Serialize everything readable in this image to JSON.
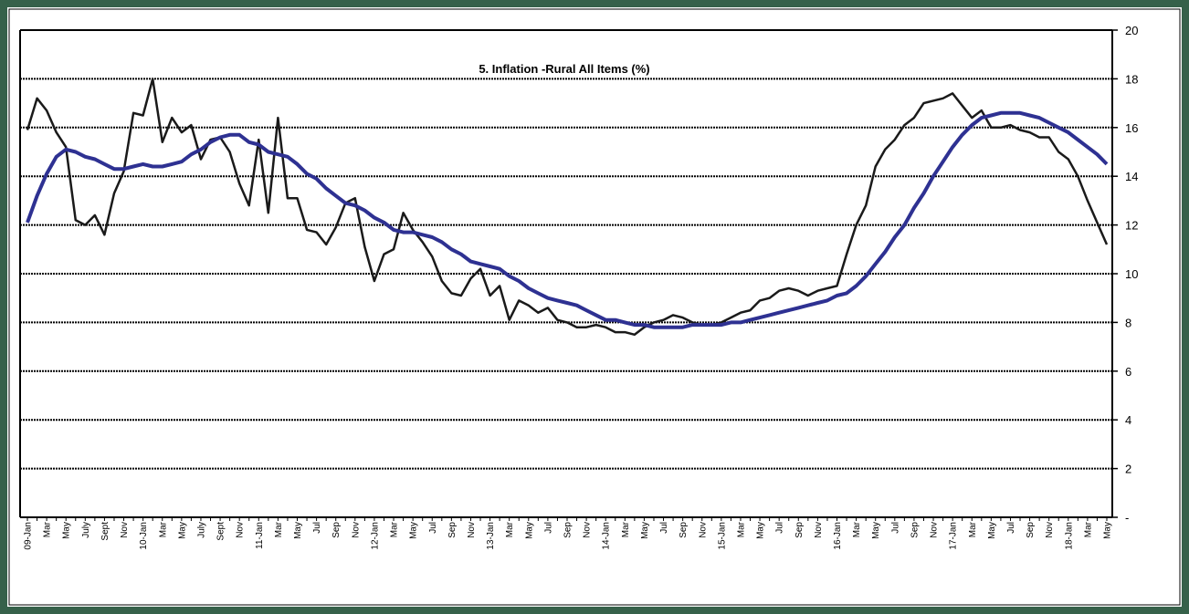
{
  "chart_data": {
    "type": "line",
    "title": "5. Inflation -Rural All Items (%)",
    "categories": [
      "09-Jan",
      null,
      "Mar",
      null,
      "May",
      null,
      "July",
      null,
      "Sept",
      null,
      "Nov",
      null,
      "10-Jan",
      null,
      "Mar",
      null,
      "May",
      null,
      "July",
      null,
      "Sept",
      null,
      "Nov",
      null,
      "11-Jan",
      null,
      "Mar",
      null,
      "May",
      null,
      "Jul",
      null,
      "Sep",
      null,
      "Nov",
      null,
      "12-Jan",
      null,
      "Mar",
      null,
      "May",
      null,
      "Jul",
      null,
      "Sep",
      null,
      "Nov",
      null,
      "13-Jan",
      null,
      "Mar",
      null,
      "May",
      null,
      "Jul",
      null,
      "Sep",
      null,
      "Nov",
      null,
      "14-Jan",
      null,
      "Mar",
      null,
      "May",
      null,
      "Jul",
      null,
      "Sep",
      null,
      "Nov",
      null,
      "15-Jan",
      null,
      "Mar",
      null,
      "May",
      null,
      "Jul",
      null,
      "Sep",
      null,
      "Nov",
      null,
      "16-Jan",
      null,
      "Mar",
      null,
      "May",
      null,
      "Jul",
      null,
      "Sep",
      null,
      "Nov",
      null,
      "17-Jan",
      null,
      "Mar",
      null,
      "May",
      null,
      "Jul",
      null,
      "Sep",
      null,
      "Nov",
      null,
      "18-Jan",
      null,
      "Mar",
      null,
      "May"
    ],
    "series": [
      {
        "color": "#1a1a1a",
        "values": [
          15.9,
          17.2,
          16.7,
          15.8,
          15.2,
          12.2,
          12.0,
          12.4,
          11.6,
          13.3,
          14.2,
          16.6,
          16.5,
          18.0,
          15.4,
          16.4,
          15.8,
          16.1,
          14.7,
          15.5,
          15.6,
          15.0,
          13.7,
          12.8,
          15.5,
          12.5,
          16.4,
          13.1,
          13.1,
          11.8,
          11.7,
          11.2,
          11.9,
          12.9,
          13.1,
          11.1,
          9.7,
          10.8,
          11.0,
          12.5,
          11.8,
          11.3,
          10.7,
          9.7,
          9.2,
          9.1,
          9.8,
          10.2,
          9.1,
          9.5,
          8.1,
          8.9,
          8.7,
          8.4,
          8.6,
          8.1,
          8.0,
          7.8,
          7.8,
          7.9,
          7.8,
          7.6,
          7.6,
          7.5,
          7.8,
          8.0,
          8.1,
          8.3,
          8.2,
          8.0,
          7.9,
          7.9,
          8.0,
          8.2,
          8.4,
          8.5,
          8.9,
          9.0,
          9.3,
          9.4,
          9.3,
          9.1,
          9.3,
          9.4,
          9.5,
          10.8,
          12.0,
          12.8,
          14.4,
          15.1,
          15.5,
          16.1,
          16.4,
          17.0,
          17.1,
          17.2,
          17.4,
          16.9,
          16.4,
          16.7,
          16.0,
          16.0,
          16.1,
          15.9,
          15.8,
          15.6,
          15.6,
          15.0,
          14.7,
          14.0,
          13.0,
          12.1,
          11.2
        ]
      },
      {
        "color": "#2e3192",
        "values": [
          12.1,
          13.2,
          14.1,
          14.8,
          15.1,
          15.0,
          14.8,
          14.7,
          14.5,
          14.3,
          14.3,
          14.4,
          14.5,
          14.4,
          14.4,
          14.5,
          14.6,
          14.9,
          15.1,
          15.4,
          15.6,
          15.7,
          15.7,
          15.4,
          15.3,
          15.0,
          14.9,
          14.8,
          14.5,
          14.1,
          13.9,
          13.5,
          13.2,
          12.9,
          12.8,
          12.6,
          12.3,
          12.1,
          11.8,
          11.7,
          11.7,
          11.6,
          11.5,
          11.3,
          11.0,
          10.8,
          10.5,
          10.4,
          10.3,
          10.2,
          9.9,
          9.7,
          9.4,
          9.2,
          9.0,
          8.9,
          8.8,
          8.7,
          8.5,
          8.3,
          8.1,
          8.1,
          8.0,
          7.9,
          7.9,
          7.8,
          7.8,
          7.8,
          7.8,
          7.9,
          7.9,
          7.9,
          7.9,
          8.0,
          8.0,
          8.1,
          8.2,
          8.3,
          8.4,
          8.5,
          8.6,
          8.7,
          8.8,
          8.9,
          9.1,
          9.2,
          9.5,
          9.9,
          10.4,
          10.9,
          11.5,
          12.0,
          12.7,
          13.3,
          14.0,
          14.6,
          15.2,
          15.7,
          16.1,
          16.4,
          16.5,
          16.6,
          16.6,
          16.6,
          16.5,
          16.4,
          16.2,
          16.0,
          15.8,
          15.5,
          15.2,
          14.9,
          14.5
        ]
      }
    ],
    "ylim": [
      0,
      20
    ],
    "yticks": [
      {
        "value": 0,
        "label": "-"
      },
      2,
      4,
      6,
      8,
      10,
      12,
      14,
      16,
      18,
      20
    ],
    "grid": true
  }
}
